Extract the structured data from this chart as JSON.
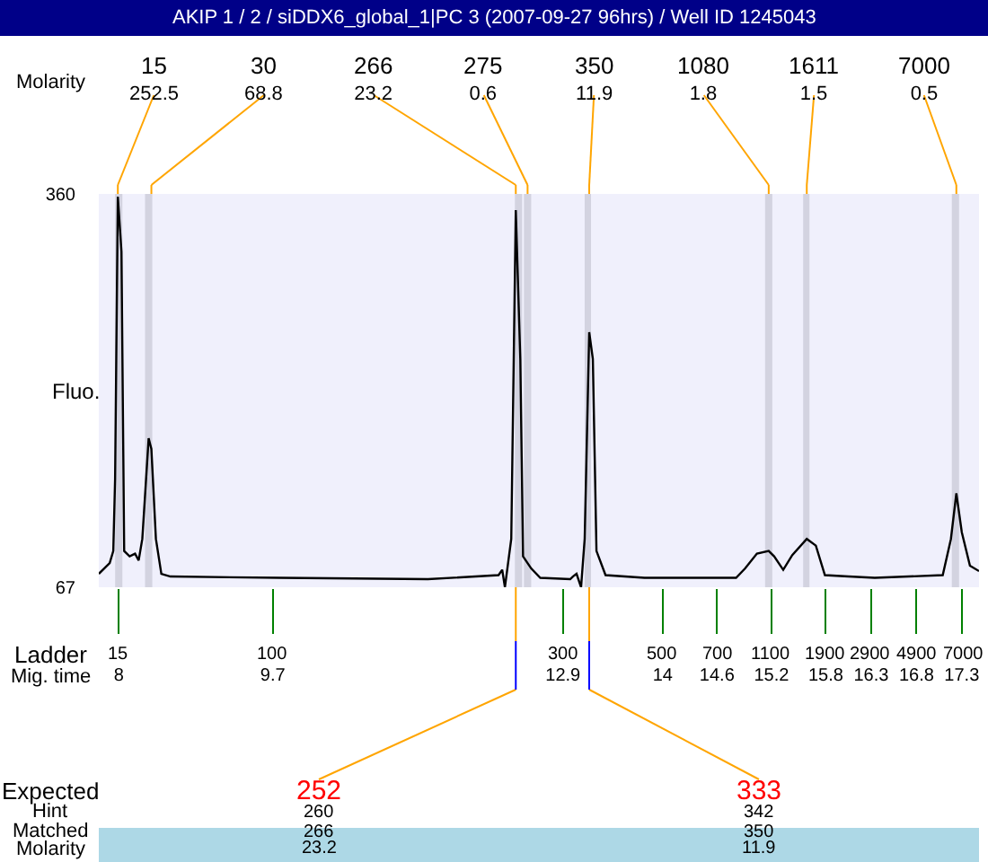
{
  "chart_data": {
    "type": "line",
    "title": "AKIP 1 / 2 / siDDX6_global_1|PC 3 (2007-09-27 96hrs) / Well ID 1245043",
    "ylabel": "Fluo.",
    "x": [
      7.78,
      7.9,
      7.94,
      7.96,
      7.99,
      8.03,
      8.06,
      8.12,
      8.18,
      8.22,
      8.26,
      8.33,
      8.36,
      8.41,
      8.47,
      8.57,
      9.78,
      11.41,
      12.19,
      12.23,
      12.26,
      12.33,
      12.38,
      12.43,
      12.46,
      12.51,
      12.55,
      12.65,
      12.98,
      13.01,
      13.05,
      13.1,
      13.14,
      13.19,
      13.23,
      13.27,
      13.37,
      13.8,
      14.81,
      14.91,
      15.04,
      15.17,
      15.23,
      15.33,
      15.43,
      15.59,
      15.69,
      15.79,
      16.05,
      16.34,
      17.09,
      17.18,
      17.24,
      17.3,
      17.39,
      17.49
    ],
    "series": [
      {
        "color": "#000000",
        "values": [
          77,
          85,
          94,
          148,
          358,
          317,
          94,
          90,
          92,
          87,
          103,
          178,
          170,
          103,
          77,
          75,
          74,
          73,
          76,
          80,
          67,
          103,
          348,
          237,
          90,
          85,
          81,
          74,
          73,
          75,
          77,
          67,
          103,
          257,
          237,
          94,
          76,
          74,
          74,
          81,
          92,
          94,
          90,
          80,
          91,
          103,
          98,
          76,
          75,
          74,
          76,
          103,
          137,
          108,
          83,
          79
        ]
      }
    ],
    "xlim": [
      7.78,
      17.49
    ],
    "xticks": [
      8,
      9.7,
      12.9,
      14,
      14.6,
      15.2,
      15.8,
      16.3,
      16.8,
      17.3
    ],
    "ylim": [
      67,
      360
    ],
    "yticks": [
      67,
      360
    ],
    "grid": false,
    "marker": "none",
    "line_style": "solid",
    "bands": [
      {
        "axis": "x",
        "from": 7.96,
        "to": 8.04,
        "color": "#d3d3e0"
      },
      {
        "axis": "x",
        "from": 8.29,
        "to": 8.37,
        "color": "#d3d3e0"
      },
      {
        "axis": "x",
        "from": 12.37,
        "to": 12.45,
        "color": "#d3d3e0"
      },
      {
        "axis": "x",
        "from": 12.47,
        "to": 12.55,
        "color": "#d3d3e0"
      },
      {
        "axis": "x",
        "from": 13.14,
        "to": 13.21,
        "color": "#d3d3e0"
      },
      {
        "axis": "x",
        "from": 15.13,
        "to": 15.21,
        "color": "#d3d3e0"
      },
      {
        "axis": "x",
        "from": 15.55,
        "to": 15.62,
        "color": "#d3d3e0"
      },
      {
        "axis": "x",
        "from": 17.19,
        "to": 17.27,
        "color": "#d3d3e0"
      }
    ],
    "annotations": [
      "Molarity",
      "Ladder",
      "Mig. time",
      "Expected",
      "Hint",
      "Matched",
      "Molarity",
      {
        "text": "15\n252.5",
        "x": 7.99
      },
      {
        "text": "30\n68.8",
        "x": 8.36
      },
      {
        "text": "266\n23.2",
        "x": 12.38
      },
      {
        "text": "275\n0.6",
        "x": 12.51
      },
      {
        "text": "350\n11.9",
        "x": 13.19
      },
      {
        "text": "1080\n1.8",
        "x": 15.17
      },
      {
        "text": "1611\n1.5",
        "x": 15.59
      },
      {
        "text": "7000\n0.5",
        "x": 17.24
      },
      {
        "text": "252\n260\n266\n23.2",
        "x": 12.38
      },
      {
        "text": "333\n342\n350\n11.9",
        "x": 13.19
      },
      "15",
      "100",
      "300",
      "500",
      "700",
      "1100",
      "1900",
      "2900",
      "4900",
      "7000"
    ]
  }
}
